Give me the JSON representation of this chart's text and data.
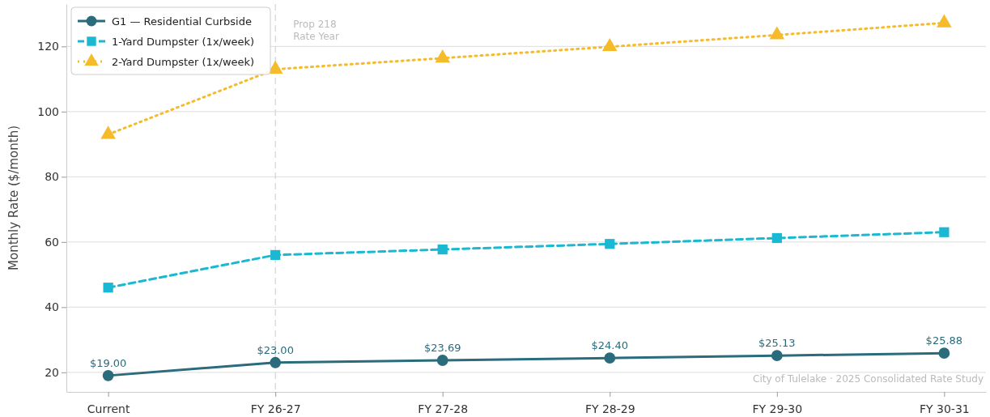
{
  "chart_data": {
    "type": "line",
    "ylabel": "Monthly Rate ($/month)",
    "categories": [
      "Current",
      "FY 26-27",
      "FY 27-28",
      "FY 28-29",
      "FY 29-30",
      "FY 30-31"
    ],
    "series": [
      {
        "name": "G1 — Residential Curbside",
        "color": "#2a6b7c",
        "marker": "circle",
        "line_style": "solid",
        "values": [
          19.0,
          23.0,
          23.69,
          24.4,
          25.13,
          25.88
        ],
        "value_labels": [
          "$19.00",
          "$23.00",
          "$23.69",
          "$24.40",
          "$25.13",
          "$25.88"
        ]
      },
      {
        "name": "1-Yard Dumpster (1x/week)",
        "color": "#1ab8d2",
        "marker": "square",
        "line_style": "dashed",
        "values": [
          46,
          56,
          57.7,
          59.4,
          61.2,
          63.0
        ]
      },
      {
        "name": "2-Yard Dumpster (1x/week)",
        "color": "#f5bb2a",
        "marker": "triangle",
        "line_style": "dotted",
        "values": [
          93,
          113,
          116.4,
          119.9,
          123.5,
          127.2
        ]
      }
    ],
    "ylim": [
      14,
      133
    ],
    "yticks": [
      20,
      40,
      60,
      80,
      100,
      120
    ],
    "grid": "y",
    "legend": "top left",
    "ref_lines": [
      {
        "axis": "x",
        "value": "FY 26-27",
        "label": "Prop 218\nRate Year",
        "color": "#cccccc",
        "line_style": "dashed"
      }
    ],
    "annotations": [
      "City of Tulelake  ·  2025 Consolidated Rate Study"
    ]
  }
}
